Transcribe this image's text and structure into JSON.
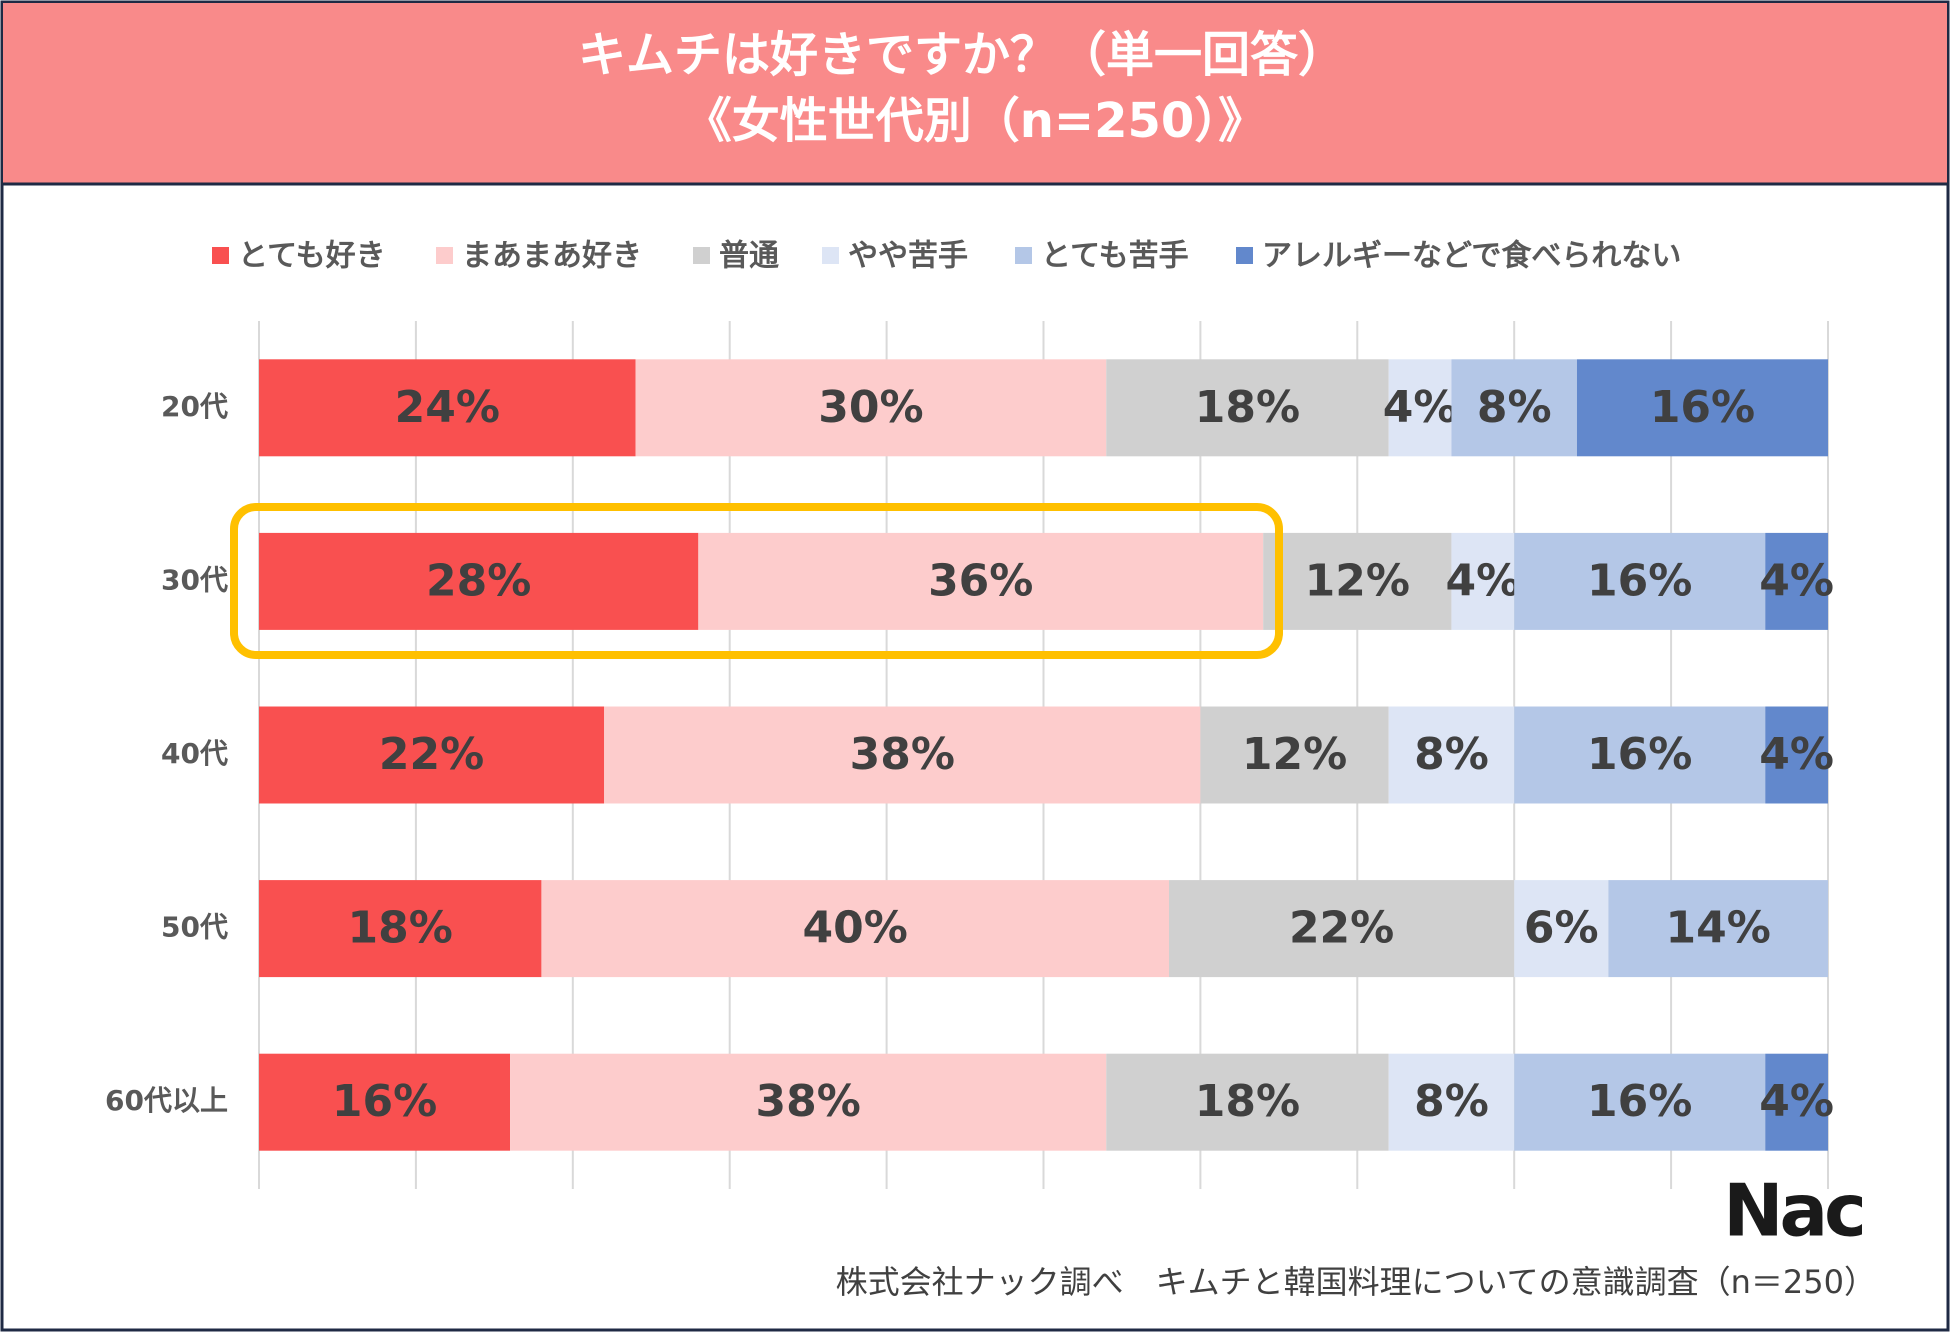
{
  "chart_data": {
    "type": "stacked-bar-horizontal",
    "title": "キムチは好きですか？（単一回答）",
    "subtitle": "《女性世代別（n=250）》",
    "categories": [
      "20代",
      "30代",
      "40代",
      "50代",
      "60代以上"
    ],
    "series": [
      {
        "name": "とても好き",
        "color": "#f95050",
        "values": [
          24,
          28,
          22,
          18,
          16
        ],
        "value_labels": [
          "24%",
          "28%",
          "22%",
          "18%",
          "16%"
        ]
      },
      {
        "name": "まあまあ好き",
        "color": "#fdcccc",
        "values": [
          30,
          36,
          38,
          40,
          38
        ],
        "value_labels": [
          "30%",
          "36%",
          "38%",
          "40%",
          "38%"
        ]
      },
      {
        "name": "普通",
        "color": "#d0d0d0",
        "values": [
          18,
          12,
          12,
          22,
          18
        ],
        "value_labels": [
          "18%",
          "12%",
          "12%",
          "22%",
          "18%"
        ]
      },
      {
        "name": "やや苦手",
        "color": "#dde5f5",
        "values": [
          4,
          4,
          8,
          6,
          8
        ],
        "value_labels": [
          "4%",
          "4%",
          "8%",
          "6%",
          "8%"
        ]
      },
      {
        "name": "とても苦手",
        "color": "#b4c7e7",
        "values": [
          8,
          16,
          16,
          14,
          16
        ],
        "value_labels": [
          "8%",
          "16%",
          "16%",
          "14%",
          "16%"
        ]
      },
      {
        "name": "アレルギーなどで食べられない",
        "color": "#6288cc",
        "values": [
          16,
          4,
          4,
          null,
          4
        ],
        "value_labels": [
          "16%",
          "4%",
          "4%",
          null,
          "4%"
        ]
      }
    ],
    "xlim": [
      0,
      100
    ],
    "xticks": [
      0,
      10,
      20,
      30,
      40,
      50,
      60,
      70,
      80,
      90,
      100
    ],
    "grid": true,
    "legend": "top",
    "source": "株式会社ナック調べ　キムチと韓国料理についての意識調査（n＝250）",
    "logo": "Nac"
  }
}
